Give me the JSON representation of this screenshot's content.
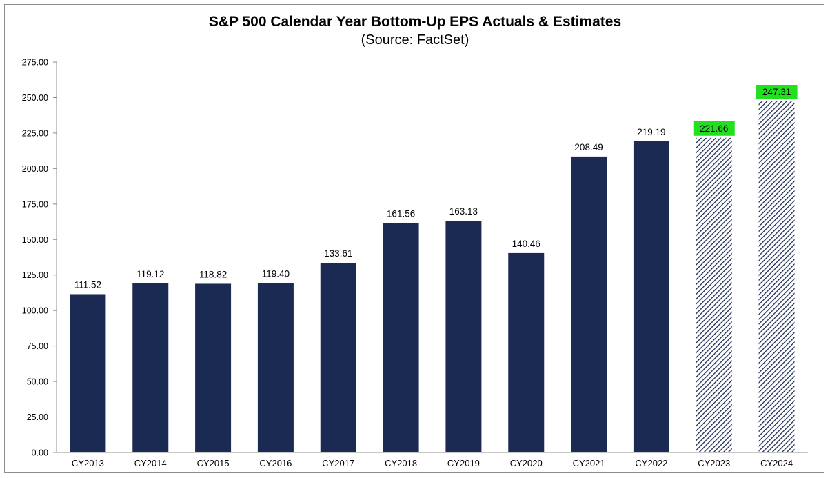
{
  "chart_data": {
    "type": "bar",
    "title": "S&P 500 Calendar Year Bottom-Up EPS Actuals & Estimates",
    "subtitle": "(Source: FactSet)",
    "xlabel": "",
    "ylabel": "",
    "ylim": [
      0,
      275
    ],
    "yticks": [
      "0.00",
      "25.00",
      "50.00",
      "75.00",
      "100.00",
      "125.00",
      "150.00",
      "175.00",
      "200.00",
      "225.00",
      "250.00",
      "275.00"
    ],
    "grid": false,
    "categories": [
      "CY2013",
      "CY2014",
      "CY2015",
      "CY2016",
      "CY2017",
      "CY2018",
      "CY2019",
      "CY2020",
      "CY2021",
      "CY2022",
      "CY2023",
      "CY2024"
    ],
    "values": [
      111.52,
      119.12,
      118.82,
      119.4,
      133.61,
      161.56,
      163.13,
      140.46,
      208.49,
      219.19,
      221.66,
      247.31
    ],
    "data_labels": [
      "111.52",
      "119.12",
      "118.82",
      "119.40",
      "133.61",
      "161.56",
      "163.13",
      "140.46",
      "208.49",
      "219.19",
      "221.66",
      "247.31"
    ],
    "estimate": [
      false,
      false,
      false,
      false,
      false,
      false,
      false,
      false,
      false,
      false,
      true,
      true
    ],
    "highlighted_labels": [
      false,
      false,
      false,
      false,
      false,
      false,
      false,
      false,
      false,
      false,
      true,
      true
    ],
    "colors": {
      "actual_bar": "#1b2a52",
      "estimate_hatch": "#1b2a52",
      "highlight": "#22e01f",
      "axis": "#8c8c8c"
    }
  }
}
